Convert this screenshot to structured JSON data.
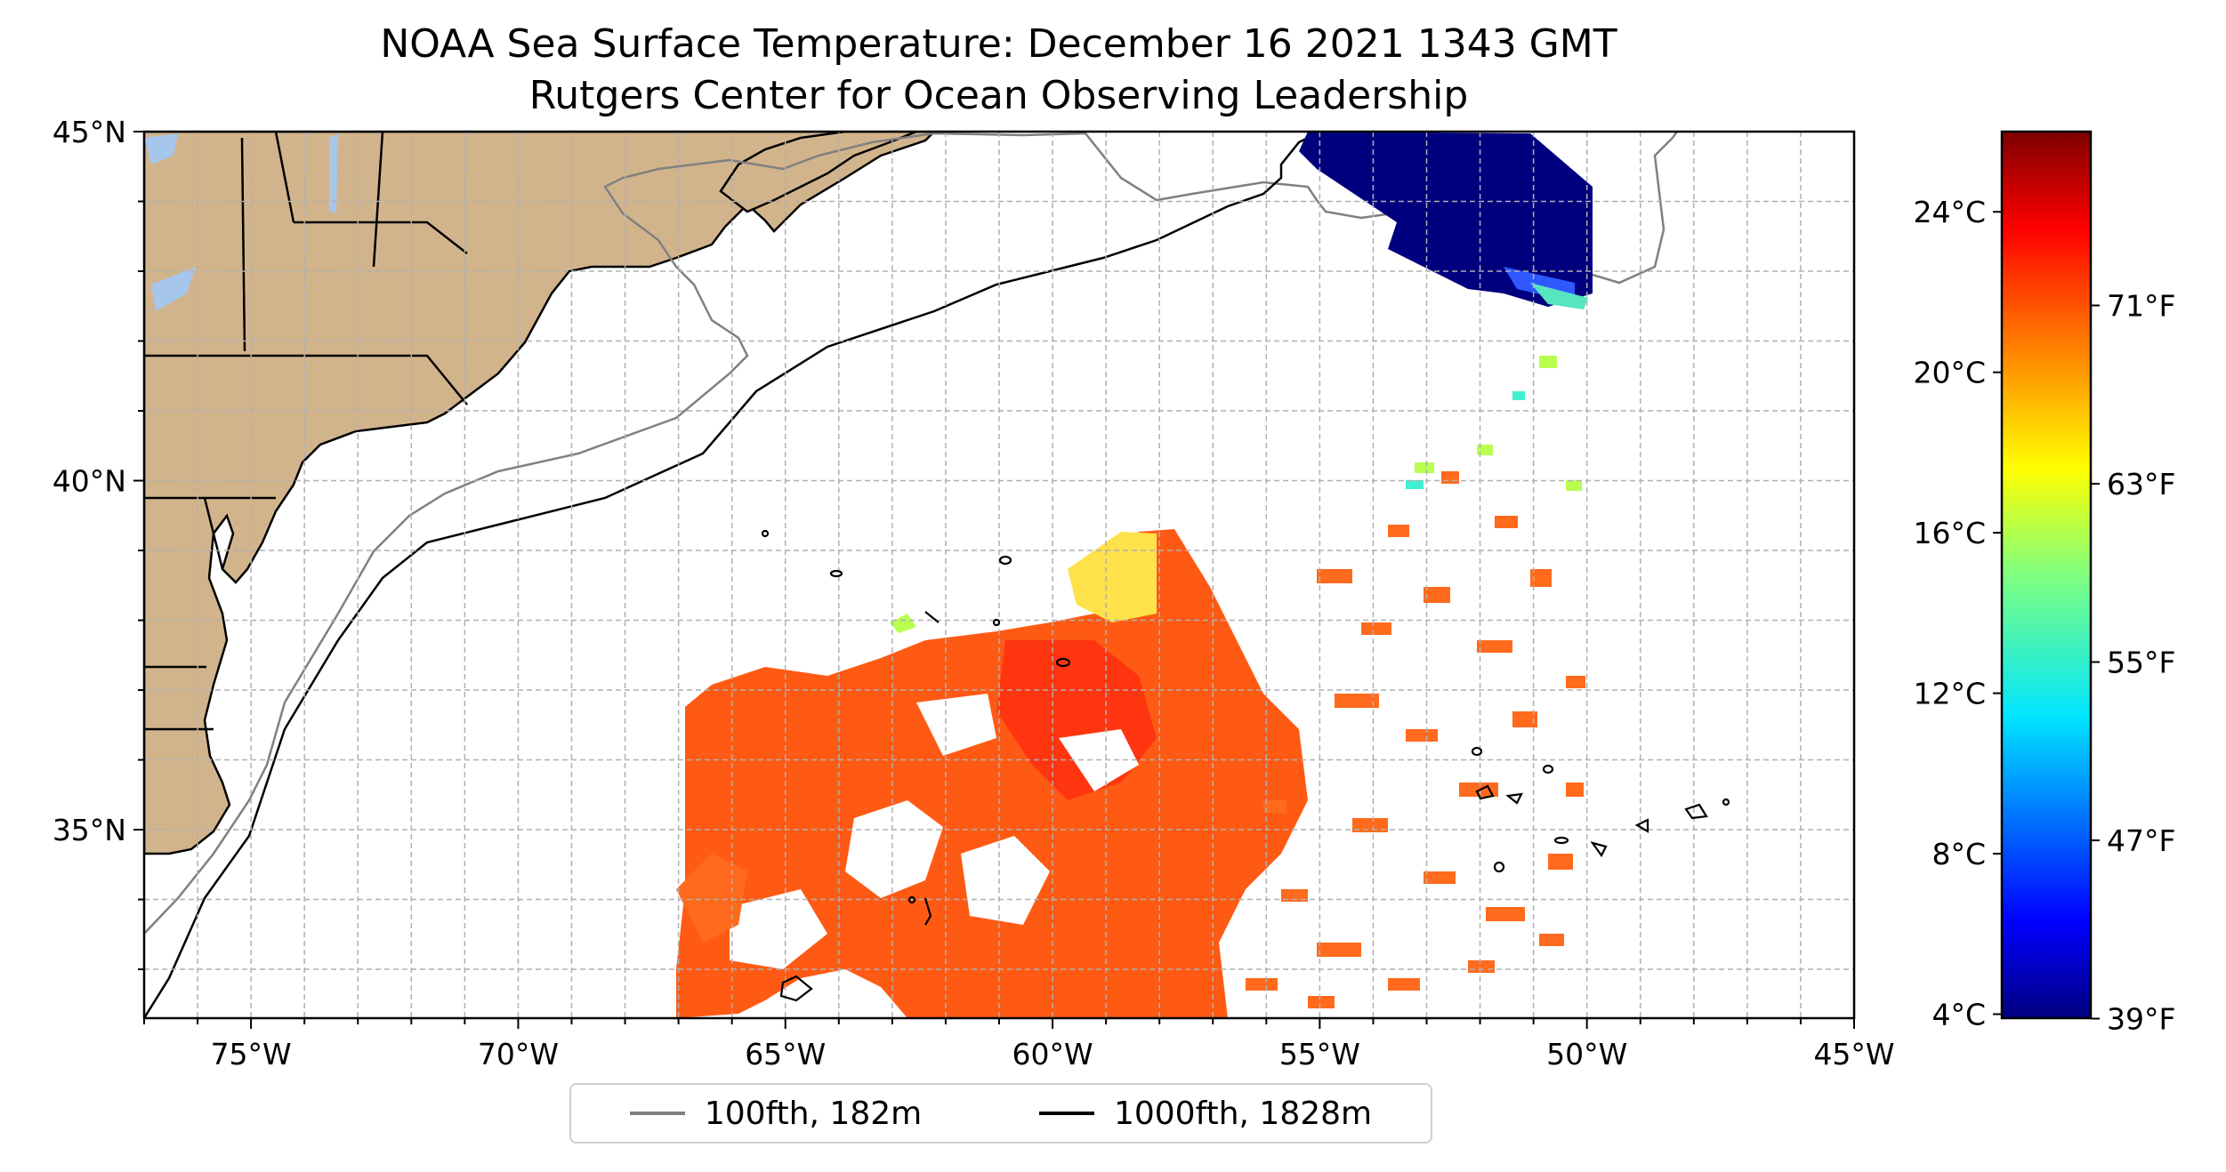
{
  "title": {
    "line1": "NOAA Sea Surface Temperature: December 16 2021 1343 GMT",
    "line2": "Rutgers Center for Ocean Observing Leadership"
  },
  "map": {
    "lon_range": [
      -77,
      -45
    ],
    "lat_range": [
      32.3,
      45
    ],
    "lon_ticks": [
      {
        "value": -75,
        "label": "75°W"
      },
      {
        "value": -70,
        "label": "70°W"
      },
      {
        "value": -65,
        "label": "65°W"
      },
      {
        "value": -60,
        "label": "60°W"
      },
      {
        "value": -55,
        "label": "55°W"
      },
      {
        "value": -50,
        "label": "50°W"
      },
      {
        "value": -45,
        "label": "45°W"
      }
    ],
    "lat_ticks": [
      {
        "value": 45,
        "label": "45°N"
      },
      {
        "value": 40,
        "label": "40°N"
      },
      {
        "value": 35,
        "label": "35°N"
      }
    ],
    "grid": true,
    "colors": {
      "land": "#d2b48c",
      "lakes": "#a6c6ec",
      "contour_100": "#808080",
      "contour_1000": "#000000"
    }
  },
  "colorbar": {
    "celsius_ticks": [
      {
        "value": 24,
        "label": "24°C"
      },
      {
        "value": 20,
        "label": "20°C"
      },
      {
        "value": 16,
        "label": "16°C"
      },
      {
        "value": 12,
        "label": "12°C"
      },
      {
        "value": 8,
        "label": "8°C"
      },
      {
        "value": 4,
        "label": "4°C"
      }
    ],
    "fahrenheit_ticks": [
      {
        "value": 71,
        "label": "71°F"
      },
      {
        "value": 63,
        "label": "63°F"
      },
      {
        "value": 55,
        "label": "55°F"
      },
      {
        "value": 47,
        "label": "47°F"
      },
      {
        "value": 39,
        "label": "39°F"
      }
    ],
    "range_celsius": [
      3.9,
      26
    ],
    "colormap": "jet"
  },
  "legend": {
    "items": [
      {
        "label": "100fth, 182m",
        "color": "#808080"
      },
      {
        "label": "1000fth, 1828m",
        "color": "#000000"
      }
    ]
  }
}
